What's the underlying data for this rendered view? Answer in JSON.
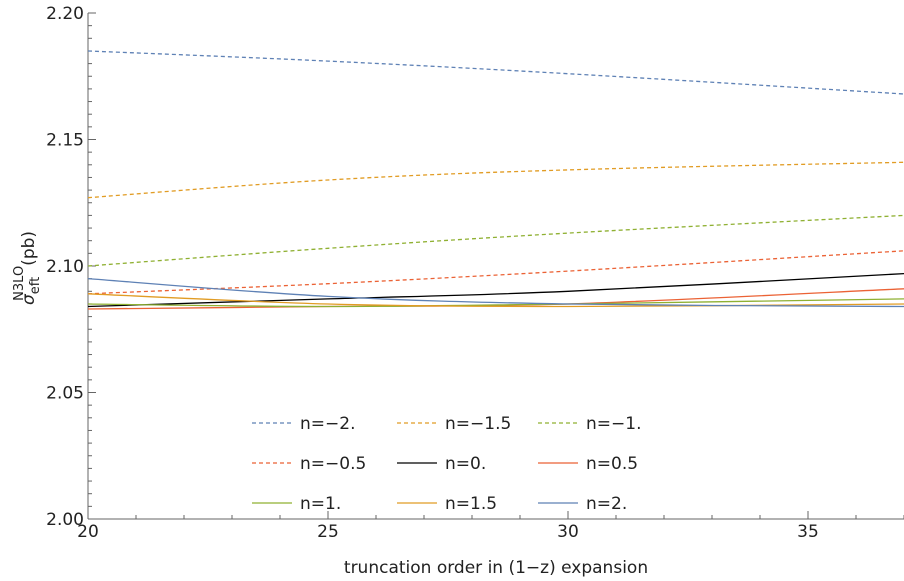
{
  "chart_data": {
    "type": "line",
    "xlabel": "truncation order in (1−z) expansion",
    "ylabel": {
      "symbol": "σ",
      "subscript": "eft",
      "superscript": "N3LO",
      "unit": "(pb)"
    },
    "xlim": [
      20,
      37
    ],
    "ylim": [
      2.0,
      2.2
    ],
    "xticks": [
      20,
      25,
      30,
      35
    ],
    "xtick_labels": [
      "20",
      "25",
      "30",
      "35"
    ],
    "yticks": [
      2.0,
      2.05,
      2.1,
      2.15,
      2.2
    ],
    "ytick_labels": [
      "2.00",
      "2.05",
      "2.10",
      "2.15",
      "2.20"
    ],
    "grid": false,
    "legend_position": "bottom-center",
    "series": [
      {
        "name": "n=−2.",
        "color": "#5e81b5",
        "dash": true,
        "x": [
          20,
          25,
          30,
          37
        ],
        "y": [
          2.185,
          2.181,
          2.176,
          2.168
        ]
      },
      {
        "name": "n=−1.5",
        "color": "#e19c24",
        "dash": true,
        "x": [
          20,
          25,
          30,
          37
        ],
        "y": [
          2.127,
          2.134,
          2.138,
          2.141
        ]
      },
      {
        "name": "n=−1.",
        "color": "#8fb032",
        "dash": true,
        "x": [
          20,
          25,
          30,
          37
        ],
        "y": [
          2.1,
          2.107,
          2.113,
          2.12
        ]
      },
      {
        "name": "n=−0.5",
        "color": "#eb6235",
        "dash": true,
        "x": [
          20,
          25,
          30,
          37
        ],
        "y": [
          2.089,
          2.093,
          2.098,
          2.106
        ]
      },
      {
        "name": "n=0.",
        "color": "#000000",
        "dash": false,
        "x": [
          20,
          25,
          30,
          37
        ],
        "y": [
          2.084,
          2.087,
          2.09,
          2.097
        ]
      },
      {
        "name": "n=0.5",
        "color": "#eb6235",
        "dash": false,
        "x": [
          20,
          25,
          30,
          37
        ],
        "y": [
          2.083,
          2.084,
          2.085,
          2.091
        ]
      },
      {
        "name": "n=1.",
        "color": "#8fb032",
        "dash": false,
        "x": [
          20,
          25,
          30,
          37
        ],
        "y": [
          2.085,
          2.084,
          2.085,
          2.087
        ]
      },
      {
        "name": "n=1.5",
        "color": "#e19c24",
        "dash": false,
        "x": [
          20,
          25,
          30,
          37
        ],
        "y": [
          2.089,
          2.085,
          2.084,
          2.085
        ]
      },
      {
        "name": "n=2.",
        "color": "#5e81b5",
        "dash": false,
        "x": [
          20,
          25,
          30,
          37
        ],
        "y": [
          2.095,
          2.088,
          2.085,
          2.084
        ]
      }
    ]
  }
}
